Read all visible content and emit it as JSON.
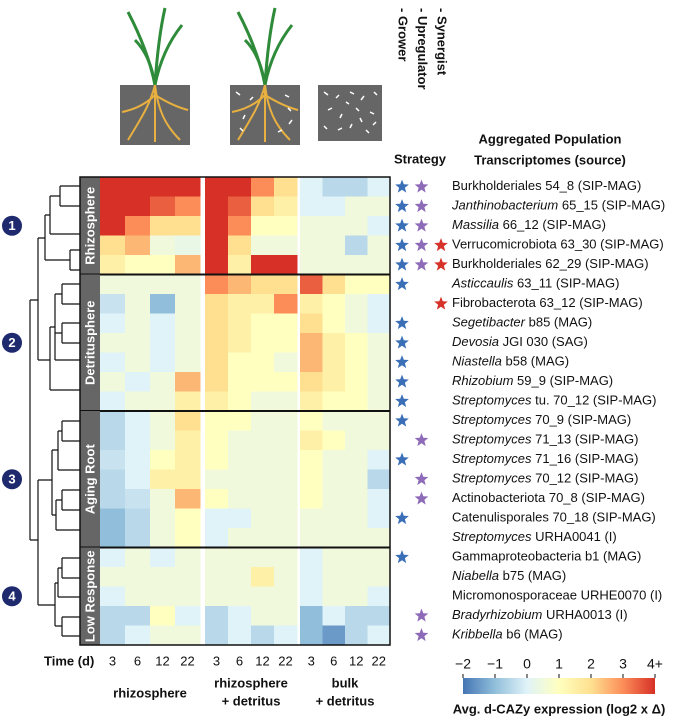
{
  "chart_data": {
    "type": "heatmap",
    "header_lines": [
      "Aggregated Population",
      "Transcriptomes (source)"
    ],
    "strategy_label": "Strategy",
    "strategies": [
      {
        "name": "- Grower",
        "color": "#3a6fb8"
      },
      {
        "name": "- Upregulator",
        "color": "#8e6bb8"
      },
      {
        "name": "- Synergist",
        "color": "#d6322a"
      }
    ],
    "time_label": "Time (d)",
    "column_groups": [
      {
        "lines": [
          "rhizosphere"
        ],
        "times": [
          "3",
          "6",
          "12",
          "22"
        ]
      },
      {
        "lines": [
          "rhizosphere",
          "+ detritus"
        ],
        "times": [
          "3",
          "6",
          "12",
          "22"
        ]
      },
      {
        "lines": [
          "bulk",
          "+ detritus"
        ],
        "times": [
          "3",
          "6",
          "12",
          "22"
        ]
      }
    ],
    "row_groups": [
      {
        "number": 1,
        "label": "Rhizosphere",
        "rows": 5
      },
      {
        "number": 2,
        "label": "Detritusphere",
        "rows": 7
      },
      {
        "number": 3,
        "label": "Aging Root",
        "rows": 7
      },
      {
        "number": 4,
        "label": "Low Response",
        "rows": 5
      }
    ],
    "rows": [
      {
        "text": "Burkholderiales 54_8 (SIP-MAG)",
        "strategy": [
          1,
          1,
          0
        ],
        "values": [
          4,
          4,
          4,
          4,
          4,
          4,
          3,
          2,
          0,
          -0.5,
          -0.5,
          0
        ]
      },
      {
        "italic": "Janthinobacterium",
        "text": "65_15 (SIP-MAG)",
        "strategy": [
          1,
          1,
          0
        ],
        "values": [
          4,
          4,
          3.5,
          3,
          4,
          3.5,
          2,
          1.5,
          0,
          0,
          0.5,
          0.5
        ]
      },
      {
        "italic": "Massilia",
        "text": "66_12 (SIP-MAG)",
        "strategy": [
          1,
          1,
          0
        ],
        "values": [
          4,
          3,
          2,
          2,
          4,
          3,
          1,
          1,
          0.5,
          0.5,
          0.5,
          0
        ]
      },
      {
        "text": "Verrucomicrobiota 63_30 (SIP-MAG)",
        "strategy": [
          1,
          1,
          1
        ],
        "values": [
          2,
          2.5,
          0.5,
          0.3,
          4,
          2,
          0.5,
          0.5,
          0.5,
          0.5,
          -0.5,
          0.5
        ]
      },
      {
        "text": "Burkholderiales 62_29 (SIP-MAG)",
        "strategy": [
          1,
          1,
          1
        ],
        "values": [
          1.5,
          1,
          1,
          2.5,
          4,
          1.5,
          4,
          4,
          0.5,
          0.5,
          0.5,
          0.5
        ]
      },
      {
        "italic": "Asticcaulis",
        "text": "63_11 (SIP-MAG)",
        "strategy": [
          1,
          0,
          0
        ],
        "values": [
          0.5,
          0.5,
          0.5,
          0.5,
          3,
          2.5,
          2,
          2,
          3.5,
          2,
          1,
          1
        ]
      },
      {
        "text": "Fibrobacterota 63_12 (SIP-MAG)",
        "strategy": [
          0,
          0,
          1
        ],
        "values": [
          -0.3,
          0.5,
          -1,
          0.5,
          2,
          1.5,
          1.5,
          3,
          1.5,
          1,
          0.5,
          0
        ]
      },
      {
        "italic": "Segetibacter",
        "text": "b85 (MAG)",
        "strategy": [
          1,
          0,
          0
        ],
        "values": [
          0,
          0.5,
          0,
          0.5,
          2,
          1.5,
          1,
          1,
          2,
          1,
          0.5,
          0
        ]
      },
      {
        "italic": "Devosia",
        "text": "JGI 030 (SAG)",
        "strategy": [
          1,
          0,
          0
        ],
        "values": [
          0.5,
          0.5,
          0,
          0.5,
          2,
          1.5,
          1,
          1,
          2.5,
          1.5,
          1,
          0.5
        ]
      },
      {
        "italic": "Niastella",
        "text": "b58 (MAG)",
        "strategy": [
          1,
          0,
          0
        ],
        "values": [
          0,
          0.5,
          0,
          0.5,
          2,
          1,
          1,
          0.5,
          2.5,
          1.5,
          1,
          0.5
        ]
      },
      {
        "italic": "Rhizobium",
        "text": "59_9 (SIP-MAG)",
        "strategy": [
          1,
          0,
          0
        ],
        "values": [
          0.5,
          0,
          0.5,
          2.5,
          2,
          1,
          1,
          1,
          2,
          1.5,
          1,
          0.5
        ]
      },
      {
        "italic": "Streptomyces",
        "text": "tu. 70_12 (SIP-MAG)",
        "strategy": [
          1,
          0,
          0
        ],
        "values": [
          0,
          0.5,
          0.5,
          1.5,
          1.5,
          1,
          0.5,
          0.5,
          1.5,
          1,
          1,
          0.5
        ]
      },
      {
        "italic": "Streptomyces",
        "text": "70_9 (SIP-MAG)",
        "strategy": [
          1,
          0,
          0
        ],
        "values": [
          -0.5,
          0,
          0.5,
          2,
          1,
          1,
          0.5,
          0.5,
          1,
          0.5,
          0.5,
          0.5
        ]
      },
      {
        "italic": "Streptomyces",
        "text": "71_13 (SIP-MAG)",
        "strategy": [
          0,
          1,
          0
        ],
        "values": [
          -0.5,
          0,
          0.5,
          1.5,
          1,
          0.5,
          0.5,
          0.5,
          1.5,
          1,
          0.5,
          0.5
        ]
      },
      {
        "italic": "Streptomyces",
        "text": "71_16 (SIP-MAG)",
        "strategy": [
          1,
          0,
          0
        ],
        "values": [
          -0.3,
          0,
          1,
          1.5,
          1,
          0.5,
          0.5,
          0.5,
          1,
          0.5,
          0.5,
          0
        ]
      },
      {
        "italic": "Streptomyces",
        "text": "70_12 (SIP-MAG)",
        "strategy": [
          0,
          1,
          0
        ],
        "values": [
          -0.5,
          0,
          1.5,
          1.5,
          0.5,
          0.5,
          0.5,
          0.5,
          1,
          0.5,
          0.5,
          -0.5
        ]
      },
      {
        "text": "Actinobacteriota 70_8 (SIP-MAG)",
        "strategy": [
          0,
          1,
          0
        ],
        "values": [
          -0.5,
          -0.3,
          0.5,
          2.5,
          1,
          0.5,
          0.5,
          0.5,
          1,
          0.5,
          0.5,
          0
        ]
      },
      {
        "text": "Catenulisporales 70_18 (SIP-MAG)",
        "strategy": [
          1,
          0,
          0
        ],
        "values": [
          -1,
          -0.5,
          0.5,
          1,
          0,
          0,
          0.5,
          0.5,
          0.5,
          0.5,
          0.5,
          0
        ]
      },
      {
        "italic": "Streptomyces",
        "text": "URHA0041 (I)",
        "strategy": [
          0,
          0,
          0
        ],
        "values": [
          -1,
          -0.5,
          0.5,
          1,
          0,
          0.5,
          0.5,
          0.5,
          0.5,
          0.5,
          0.5,
          0.5
        ]
      },
      {
        "text": "Gammaproteobacteria b1 (MAG)",
        "strategy": [
          1,
          0,
          0
        ],
        "values": [
          0,
          0.5,
          0,
          0.5,
          0.5,
          0.5,
          0.5,
          0.5,
          0,
          0.5,
          0.5,
          0.5
        ]
      },
      {
        "italic": "Niabella",
        "text": "b75 (MAG)",
        "strategy": [
          0,
          0,
          0
        ],
        "values": [
          0.5,
          0.5,
          0.5,
          0.5,
          0.5,
          0.5,
          1.5,
          0.5,
          0,
          0.5,
          0.5,
          0.5
        ]
      },
      {
        "text": "Micromonosporaceae URHE0070 (I)",
        "strategy": [
          0,
          0,
          0
        ],
        "values": [
          0,
          0.5,
          0.5,
          0.5,
          0.5,
          0.5,
          0.5,
          0.5,
          0,
          0.5,
          0.5,
          0
        ]
      },
      {
        "italic": "Bradyrhizobium",
        "text": "URHA0013 (I)",
        "strategy": [
          0,
          1,
          0
        ],
        "values": [
          -0.5,
          -0.5,
          1,
          0,
          -0.5,
          0,
          0.5,
          0.5,
          -1,
          0,
          -0.5,
          -0.5
        ]
      },
      {
        "italic": "Kribbella",
        "text": "b6 (MAG)",
        "strategy": [
          0,
          1,
          0
        ],
        "values": [
          -0.5,
          0,
          0.5,
          0.5,
          -0.5,
          0,
          -0.5,
          0,
          -1,
          -1.5,
          -0.5,
          0
        ]
      }
    ],
    "colorbar": {
      "title": "Avg. d-CAZy expression (log2 x Δ)",
      "lim": [
        -2,
        4
      ],
      "colors": [
        "#4575b4",
        "#91bfdb",
        "#e0f3f8",
        "#ffffbf",
        "#fee090",
        "#fc8d59",
        "#d73027"
      ],
      "ticks": [
        {
          "value": -2,
          "label": "−2"
        },
        {
          "value": -1,
          "label": "−1"
        },
        0,
        1,
        2,
        3,
        {
          "value": 4,
          "label": "4+"
        }
      ]
    }
  }
}
